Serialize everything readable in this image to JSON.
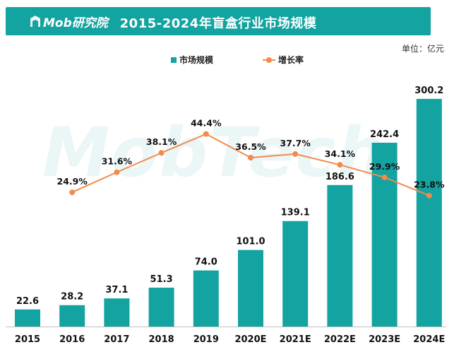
{
  "header": {
    "logo_text": "Mob研究院",
    "title": "2015-2024年盲盒行业市场规模"
  },
  "unit_label": "单位：亿元",
  "watermark_text": "MobTech",
  "colors": {
    "header_bg": "#13a3a0",
    "bar": "#13a3a0",
    "line": "#f28a4c"
  },
  "chart_data": {
    "type": "bar",
    "categories": [
      "2015",
      "2016",
      "2017",
      "2018",
      "2019",
      "2020E",
      "2021E",
      "2022E",
      "2023E",
      "2024E"
    ],
    "series": [
      {
        "name": "市场规模",
        "type": "bar",
        "values": [
          22.6,
          28.2,
          37.1,
          51.3,
          74.0,
          101.0,
          139.1,
          186.6,
          242.4,
          300.2
        ],
        "labels": [
          "22.6",
          "28.2",
          "37.1",
          "51.3",
          "74.0",
          "101.0",
          "139.1",
          "186.6",
          "242.4",
          "300.2"
        ]
      },
      {
        "name": "增长率",
        "type": "line",
        "values": [
          null,
          24.9,
          31.6,
          38.1,
          44.4,
          36.5,
          37.7,
          34.1,
          29.9,
          23.8
        ],
        "labels": [
          null,
          "24.9%",
          "31.6%",
          "38.1%",
          "44.4%",
          "36.5%",
          "37.7%",
          "34.1%",
          "29.9%",
          "23.8%"
        ]
      }
    ],
    "legend": [
      "市场规模",
      "增长率"
    ],
    "legend_position": "top",
    "grid": false
  }
}
